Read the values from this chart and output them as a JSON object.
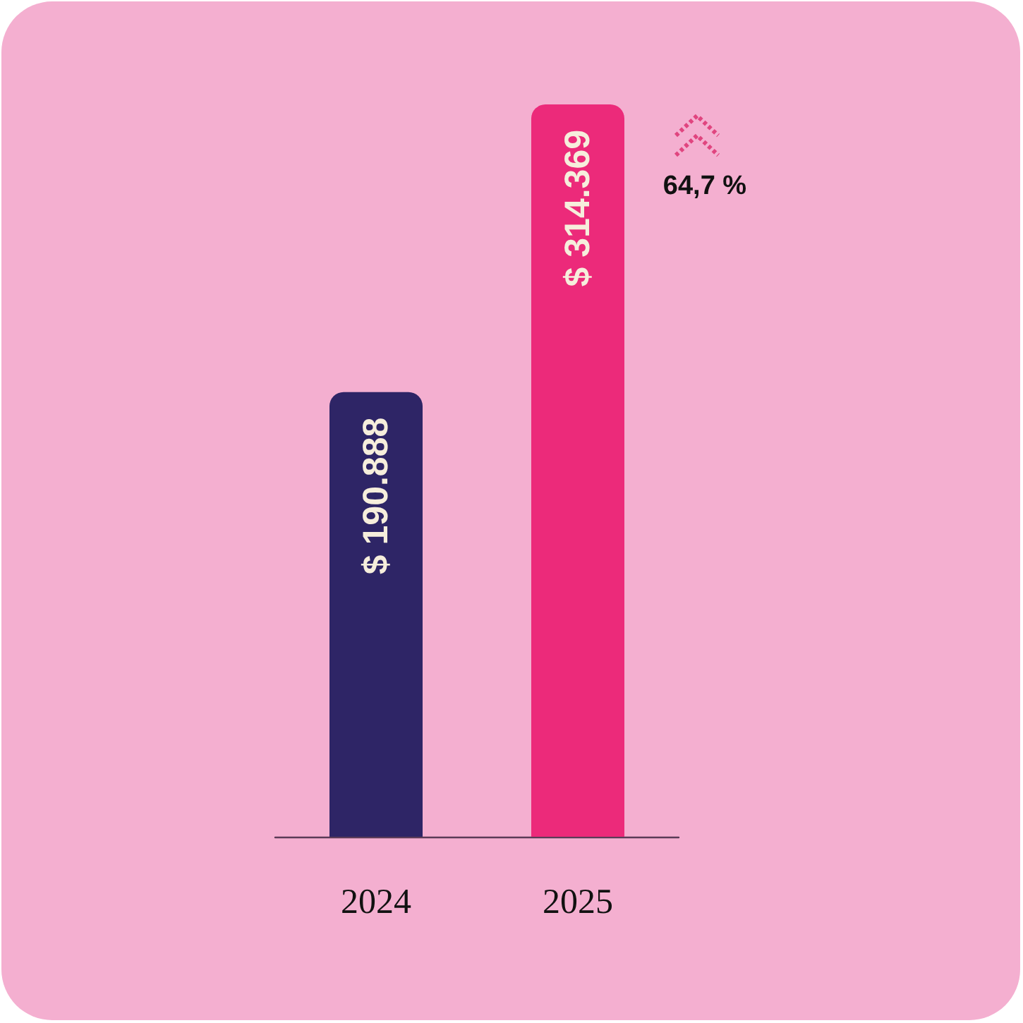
{
  "chart_data": {
    "type": "bar",
    "categories": [
      "2024",
      "2025"
    ],
    "values": [
      190888,
      314369
    ],
    "colors": [
      "#2e2566",
      "#ec2a7a"
    ],
    "value_labels": [
      "$ 190.888",
      "$ 314.369"
    ],
    "annotations": [
      "64,7 %"
    ],
    "tick_labels": "x"
  }
}
